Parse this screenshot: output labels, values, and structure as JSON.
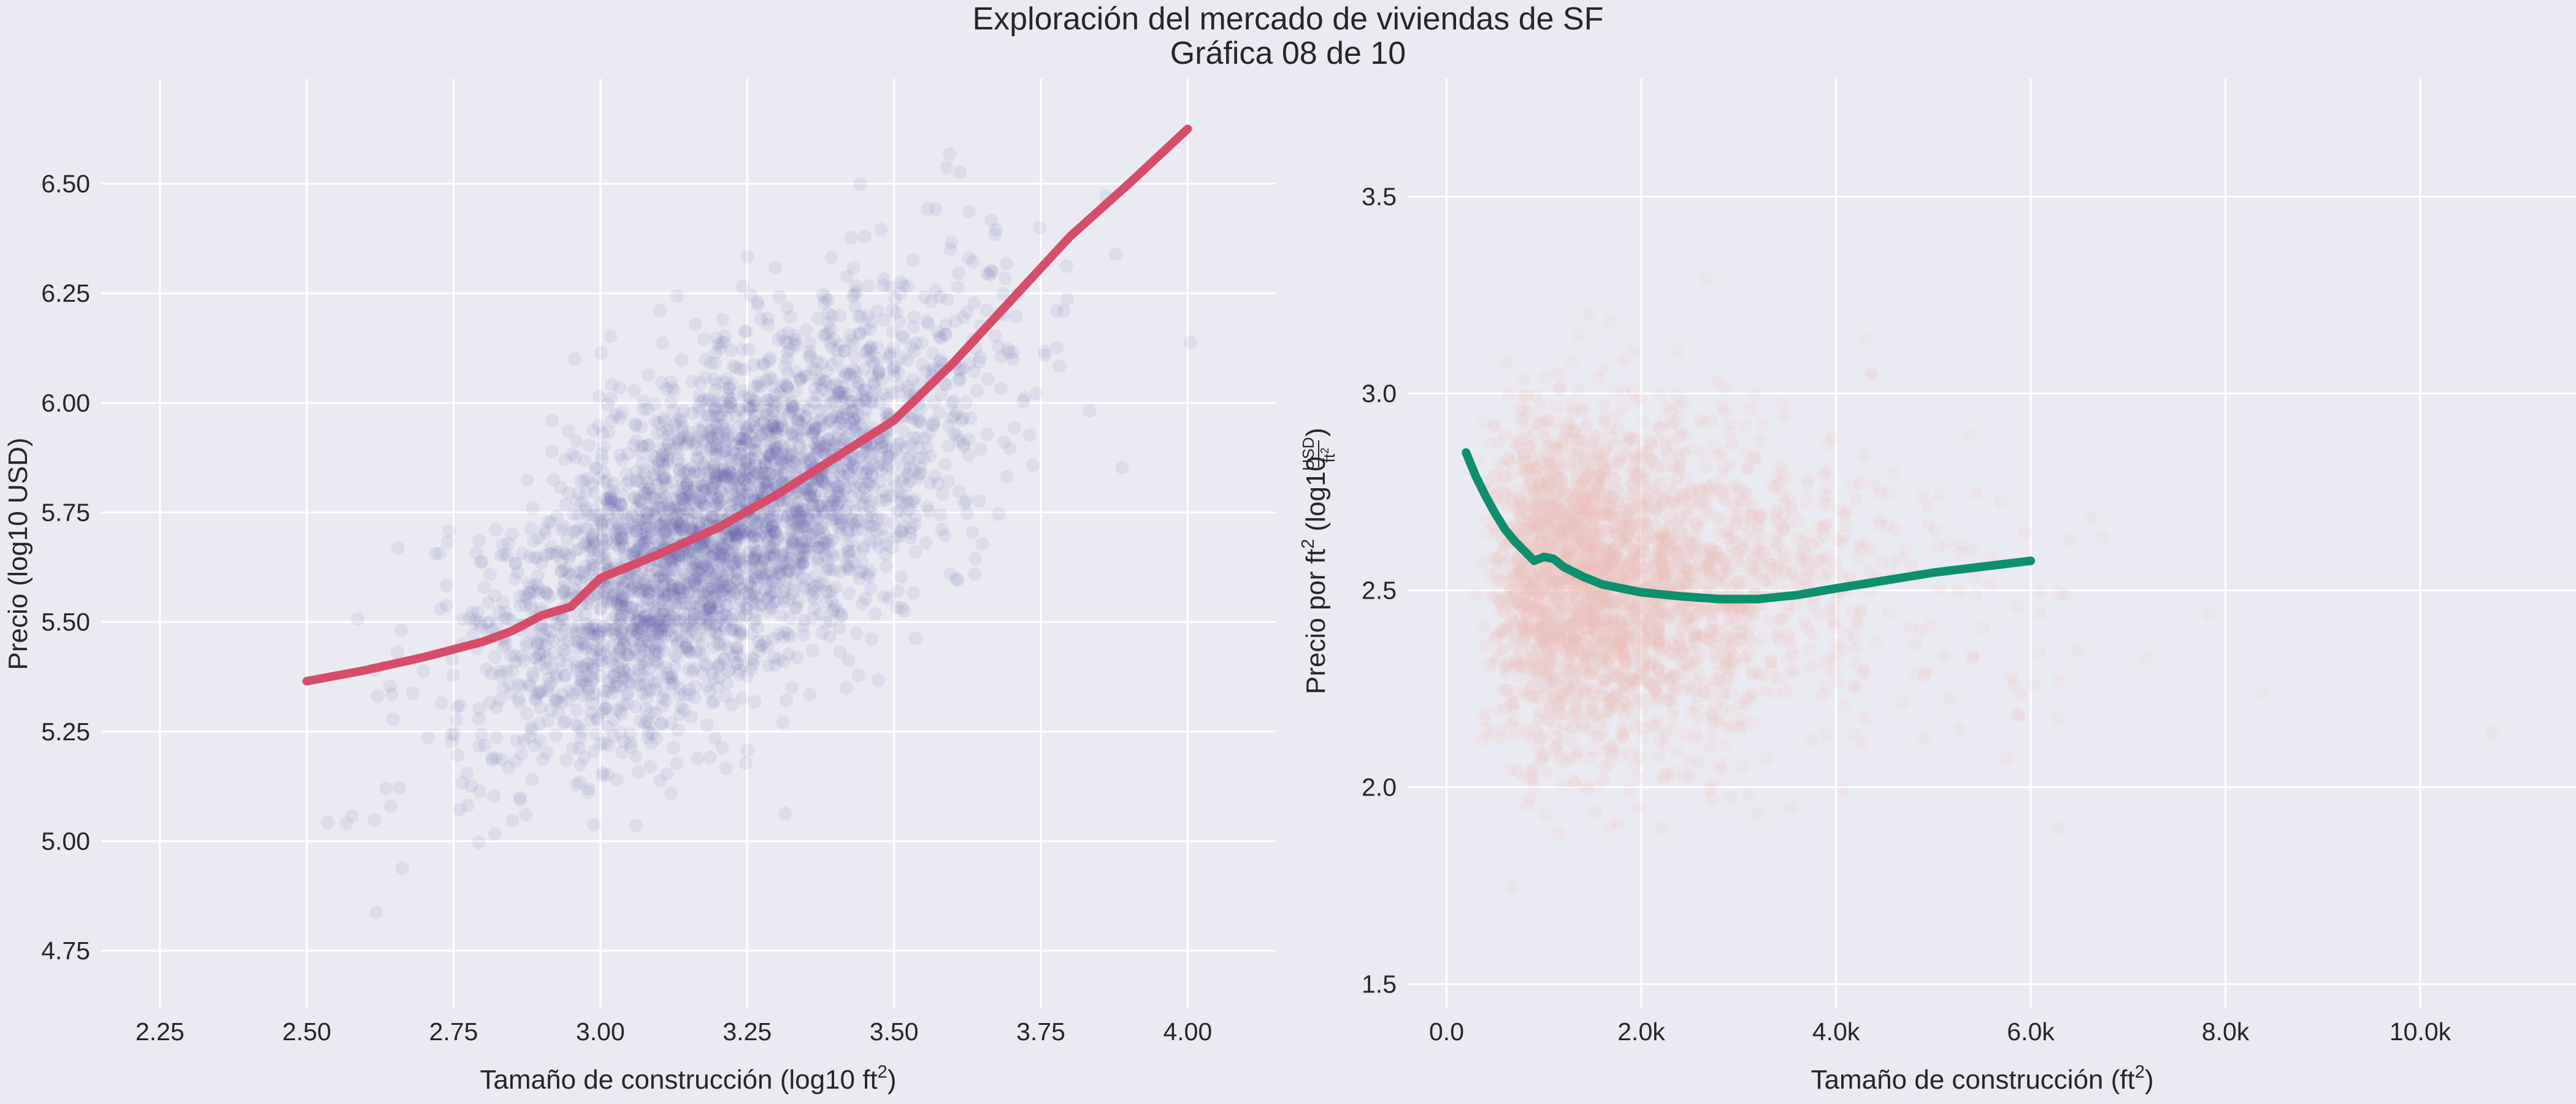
{
  "figure": {
    "title_line1": "Exploración del mercado de viviendas de SF",
    "title_line2": "Gráfica 08 de 10",
    "background": "#EAEAF2",
    "grid_color": "#FFFFFF"
  },
  "chart_data": [
    {
      "type": "scatter",
      "panel": "left",
      "xlabel": "Tamaño de construcción (log10 ft",
      "xlabel_sup": "2",
      "xlabel_tail": ")",
      "ylabel": "Precio (log10 USD)",
      "xlim": [
        2.15,
        4.15
      ],
      "ylim": [
        4.62,
        6.74
      ],
      "grid": true,
      "xticks": [
        2.25,
        2.5,
        2.75,
        3.0,
        3.25,
        3.5,
        3.75,
        4.0
      ],
      "xtick_labels": [
        "2.25",
        "2.50",
        "2.75",
        "3.00",
        "3.25",
        "3.50",
        "3.75",
        "4.00"
      ],
      "yticks": [
        4.75,
        5.0,
        5.25,
        5.5,
        5.75,
        6.0,
        6.25,
        6.5
      ],
      "ytick_labels": [
        "4.75",
        "5.00",
        "5.25",
        "5.50",
        "5.75",
        "6.00",
        "6.25",
        "6.50"
      ],
      "scatter_color": "#5B5BA8",
      "scatter_summary": {
        "approx_points": 25000,
        "x_center": 3.2,
        "x_spread": 0.2,
        "slope": 0.76,
        "intercept": 3.28,
        "residual_spread": 0.19,
        "x_range": [
          2.28,
          4.07
        ],
        "y_range": [
          4.7,
          6.6
        ]
      },
      "series": [
        {
          "kind": "lowess",
          "color": "#D64D6B",
          "x": [
            2.5,
            2.6,
            2.7,
            2.8,
            2.85,
            2.9,
            2.95,
            3.0,
            3.1,
            3.2,
            3.3,
            3.4,
            3.5,
            3.6,
            3.7,
            3.8,
            3.9,
            4.0
          ],
          "y": [
            5.365,
            5.39,
            5.42,
            5.455,
            5.48,
            5.515,
            5.535,
            5.6,
            5.655,
            5.715,
            5.79,
            5.875,
            5.96,
            6.09,
            6.235,
            6.38,
            6.5,
            6.625
          ]
        }
      ]
    },
    {
      "type": "scatter",
      "panel": "right",
      "xlabel": "Tamaño de construcción (ft",
      "xlabel_sup": "2",
      "xlabel_tail": ")",
      "ylabel_prefix": "Precio por ft",
      "ylabel_sup": "2",
      "ylabel_mid": " (log10 ",
      "ylabel_num": "USD",
      "ylabel_den": "ft",
      "ylabel_den_sup": "2",
      "ylabel_tail": ")",
      "xlim": [
        -400,
        11600
      ],
      "ylim": [
        1.44,
        3.8
      ],
      "grid": true,
      "xticks": [
        0,
        2000,
        4000,
        6000,
        8000,
        10000
      ],
      "xtick_labels": [
        "0.0",
        "2.0k",
        "4.0k",
        "6.0k",
        "8.0k",
        "10.0k"
      ],
      "yticks": [
        1.5,
        2.0,
        2.5,
        3.0,
        3.5
      ],
      "ytick_labels": [
        "1.5",
        "2.0",
        "2.5",
        "3.0",
        "3.5"
      ],
      "scatter_color": "#F2C2BB",
      "scatter_summary": {
        "approx_points": 20000,
        "x_range": [
          300,
          11000
        ],
        "y_range": [
          1.6,
          3.7
        ],
        "y_center": 2.52,
        "y_spread": 0.21
      },
      "series": [
        {
          "kind": "lowess",
          "color": "#0E8F6E",
          "x": [
            200,
            300,
            400,
            500,
            600,
            700,
            800,
            900,
            1000,
            1100,
            1200,
            1400,
            1600,
            1800,
            2000,
            2400,
            2800,
            3200,
            3600,
            4000,
            4500,
            5000,
            5500,
            6000
          ],
          "y": [
            2.85,
            2.79,
            2.74,
            2.695,
            2.655,
            2.625,
            2.6,
            2.575,
            2.585,
            2.58,
            2.56,
            2.535,
            2.515,
            2.505,
            2.495,
            2.485,
            2.478,
            2.478,
            2.488,
            2.505,
            2.525,
            2.545,
            2.56,
            2.575
          ]
        }
      ]
    }
  ]
}
